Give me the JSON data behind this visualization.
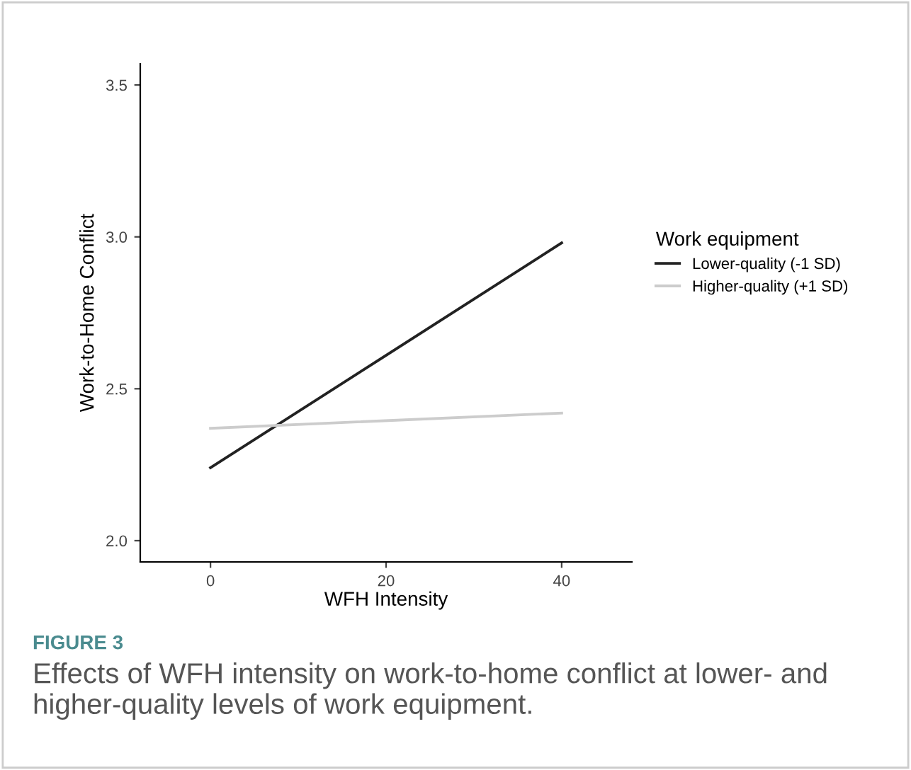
{
  "chart_data": {
    "type": "line",
    "xlabel": "WFH Intensity",
    "ylabel": "Work-to-Home Conflict",
    "legend_title": "Work equipment",
    "x": [
      0,
      40
    ],
    "series": [
      {
        "name": "Lower-quality (-1 SD)",
        "color": "#222222",
        "values": [
          2.24,
          2.98
        ]
      },
      {
        "name": "Higher-quality (+1 SD)",
        "color": "#cccccc",
        "values": [
          2.37,
          2.42
        ]
      }
    ],
    "xlim": [
      -8,
      48
    ],
    "ylim": [
      1.93,
      3.57
    ],
    "xticks": [
      0,
      20,
      40
    ],
    "yticks": [
      {
        "value": 2,
        "label": "2.0"
      },
      2.5,
      {
        "value": 3,
        "label": "3.0"
      },
      3.5
    ],
    "grid": false,
    "legend": "right",
    "marker": "none",
    "line_style": "solid",
    "annotations": [
      "FIGURE 3",
      "Effects of WFH intensity on work-to-home conflict at lower- and higher-quality levels of work equipment."
    ]
  }
}
